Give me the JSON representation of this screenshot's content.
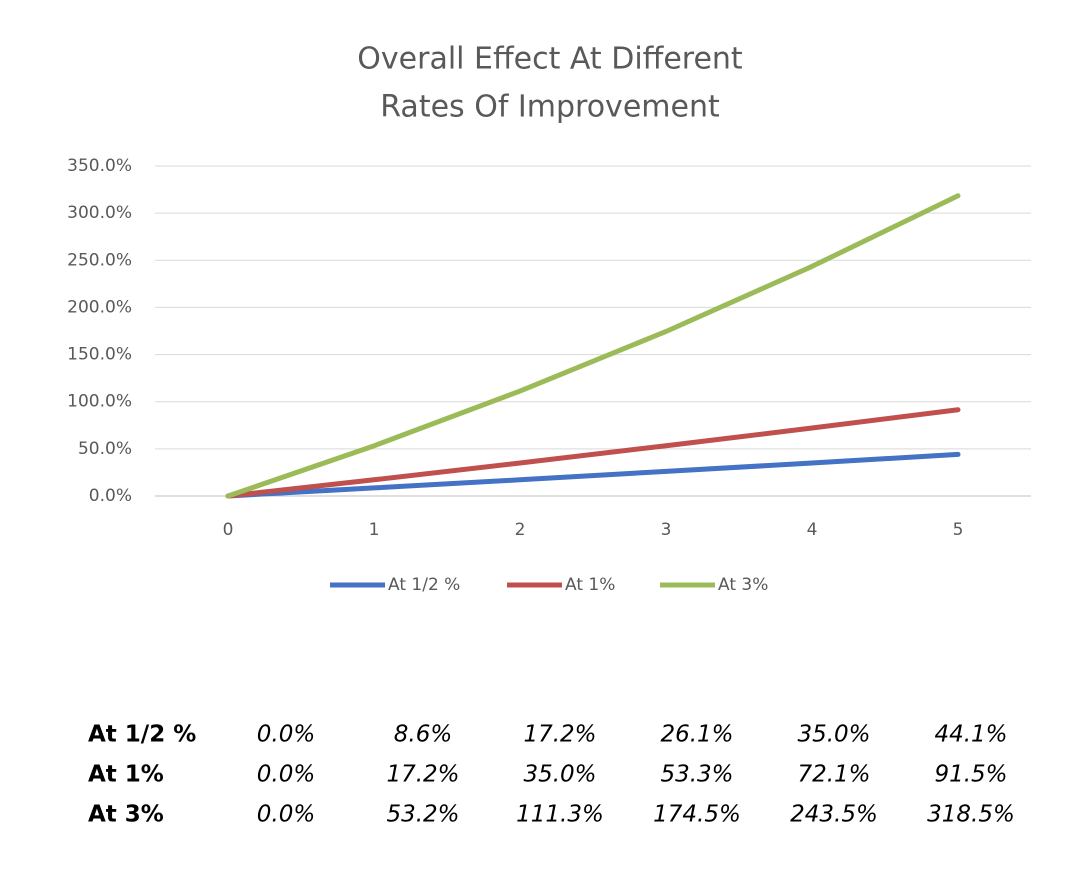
{
  "chart_data": {
    "type": "line",
    "title": [
      "Overall Effect At Different",
      "Rates Of Improvement"
    ],
    "categories": [
      "0",
      "1",
      "2",
      "3",
      "4",
      "5"
    ],
    "series": [
      {
        "name": "At 1/2 %",
        "color": "#4472c4",
        "values": [
          0.0,
          8.6,
          17.2,
          26.1,
          35.0,
          44.1
        ]
      },
      {
        "name": "At 1%",
        "color": "#c0504d",
        "values": [
          0.0,
          17.2,
          35.0,
          53.3,
          72.1,
          91.5
        ]
      },
      {
        "name": "At 3%",
        "color": "#9bbb59",
        "values": [
          0.0,
          53.2,
          111.3,
          174.5,
          243.5,
          318.5
        ]
      }
    ],
    "ylim": [
      0,
      350
    ],
    "yticks": [
      {
        "value": 0,
        "label": "0.0%"
      },
      {
        "value": 50,
        "label": "50.0%"
      },
      {
        "value": 100,
        "label": "100.0%"
      },
      {
        "value": 150,
        "label": "150.0%"
      },
      {
        "value": 200,
        "label": "200.0%"
      },
      {
        "value": 250,
        "label": "250.0%"
      },
      {
        "value": 300,
        "label": "300.0%"
      },
      {
        "value": 350,
        "label": "350.0%"
      }
    ],
    "grid": true,
    "legend": "bottom"
  },
  "table": {
    "rows": [
      [
        "At 1/2 %",
        "0.0%",
        "8.6%",
        "17.2%",
        "26.1%",
        "35.0%",
        "44.1%"
      ],
      [
        "At 1%",
        "0.0%",
        "17.2%",
        "35.0%",
        "53.3%",
        "72.1%",
        "91.5%"
      ],
      [
        "At 3%",
        "0.0%",
        "53.2%",
        "111.3%",
        "174.5%",
        "243.5%",
        "318.5%"
      ]
    ]
  }
}
